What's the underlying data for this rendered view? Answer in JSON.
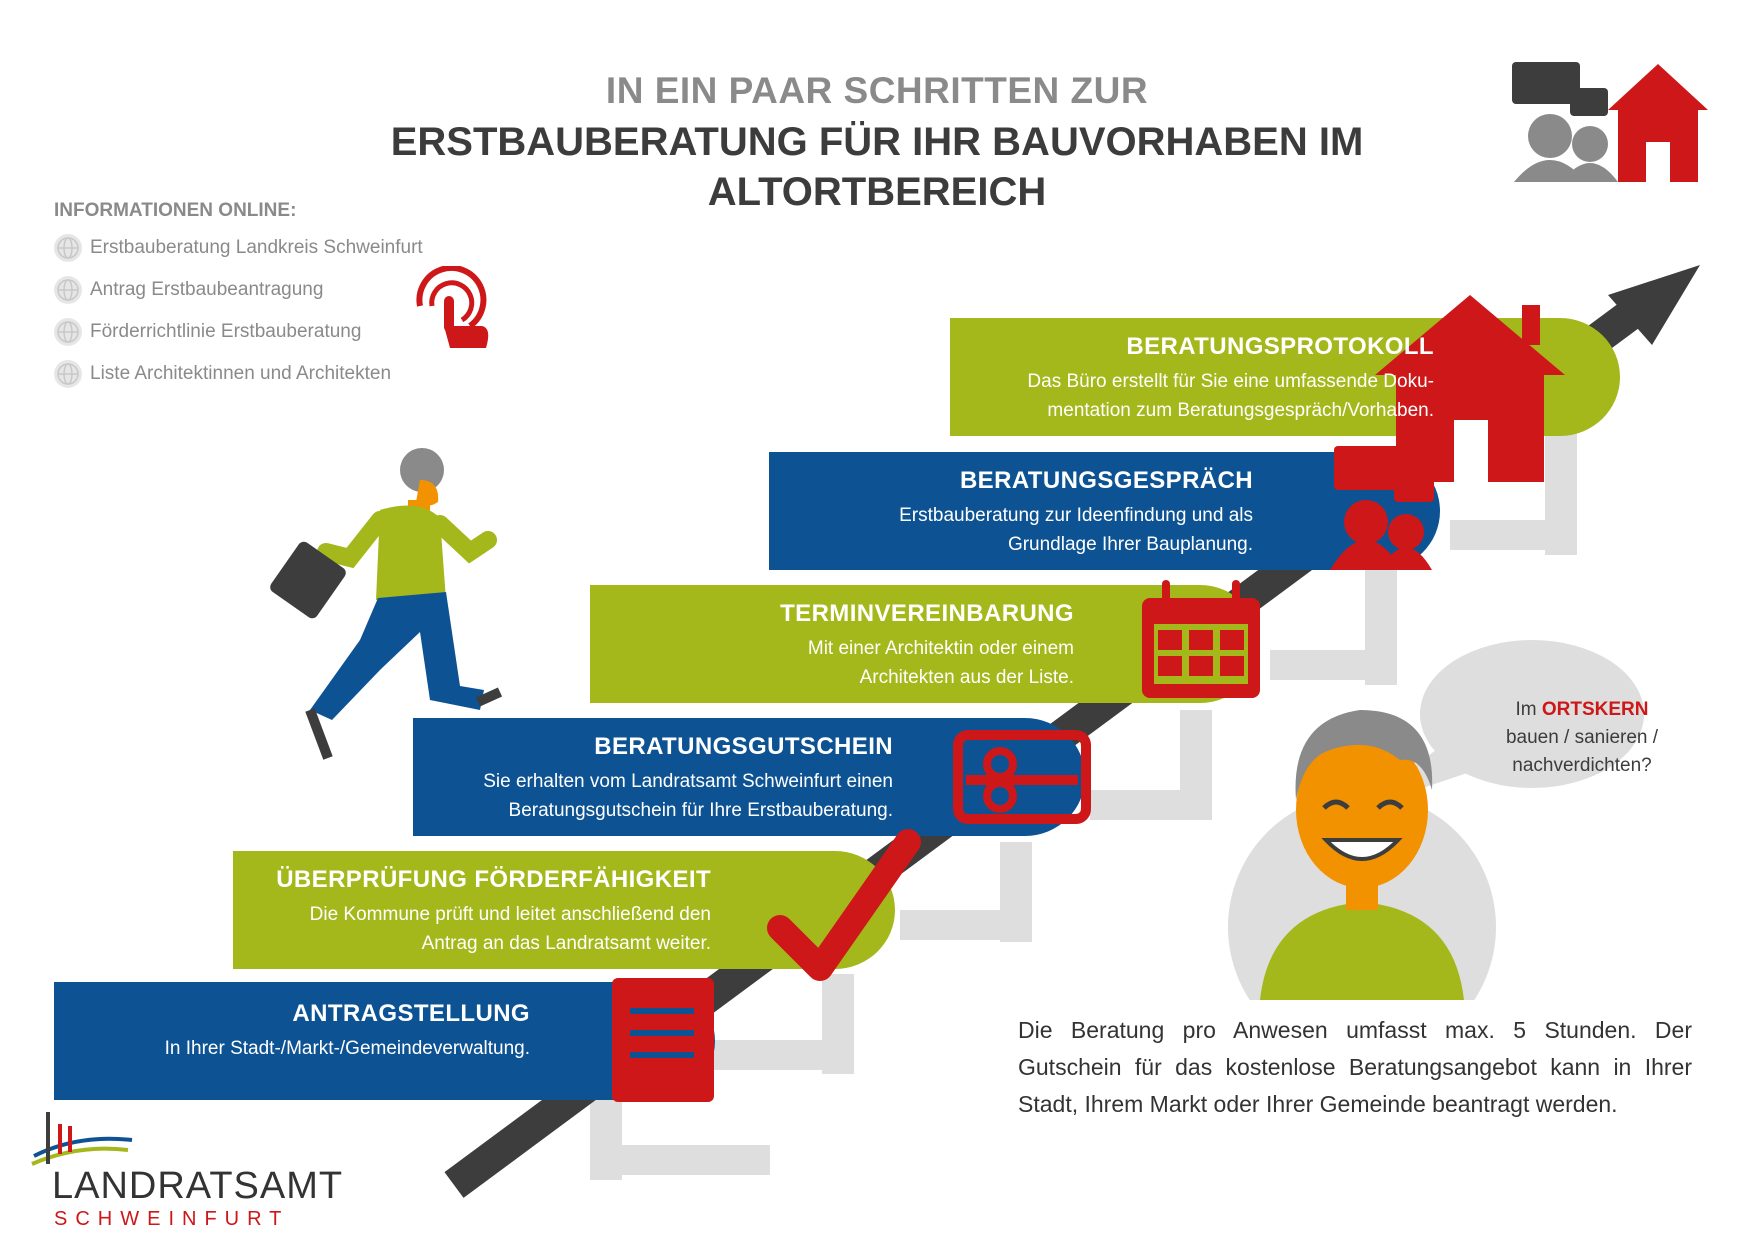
{
  "header": {
    "title_line1": "IN EIN PAAR SCHRITTEN ZUR",
    "title_line2a": "ERSTBAUBERATUNG FÜR IHR BAUVORHABEN IM",
    "title_line2b": "ALTORTBEREICH"
  },
  "info": {
    "heading": "INFORMATIONEN ONLINE:",
    "links": [
      "Erstbauberatung Landkreis Schweinfurt",
      "Antrag Erstbaubeantragung",
      "Förderrichtlinie Erstbauberatung",
      "Liste Architektinnen und Architekten"
    ]
  },
  "steps": [
    {
      "title": "ANTRAGSTELLUNG",
      "line1": "In Ihrer Stadt-/Markt-/Gemeindeverwaltung.",
      "line2": ""
    },
    {
      "title": "ÜBERPRÜFUNG FÖRDERFÄHIGKEIT",
      "line1": "Die Kommune prüft und leitet anschließend den",
      "line2": "Antrag an das Landratsamt weiter."
    },
    {
      "title": "BERATUNGSGUTSCHEIN",
      "line1": "Sie erhalten vom Landratsamt Schweinfurt einen",
      "line2": "Beratungsgutschein für Ihre Erstbauberatung."
    },
    {
      "title": "TERMINVEREINBARUNG",
      "line1": "Mit einer Architektin oder einem",
      "line2": "Architekten aus der Liste."
    },
    {
      "title": "BERATUNGSGESPRÄCH",
      "line1": "Erstbauberatung zur Ideenfindung und als",
      "line2": "Grundlage Ihrer Bauplanung."
    },
    {
      "title": "BERATUNGSPROTOKOLL",
      "line1": "Das Büro erstellt für Sie eine umfassende Doku-",
      "line2": "mentation zum Beratungsgespräch/Vorhaben."
    }
  ],
  "bubble": {
    "prefix": "Im ",
    "highlight": "ORTSKERN",
    "line2": "bauen / sanieren /",
    "line3": "nachverdichten?"
  },
  "note": "Die Beratung pro Anwesen umfasst max. 5 Stunden. Der Gutschein für das kostenlose Beratungsangebot kann in Ihrer Stadt, Ihrem Markt oder Ihrer Gemeinde beantragt werden.",
  "logo": {
    "main": "LANDRATSAMT",
    "sub": "SCHWEINFURT"
  },
  "colors": {
    "green": "#a5b81b",
    "blue": "#0d5393",
    "red": "#cd1719",
    "gray": "#8a8a8a",
    "lightgray": "#dedede",
    "dark": "#3d3d3d",
    "orange": "#f39200"
  }
}
